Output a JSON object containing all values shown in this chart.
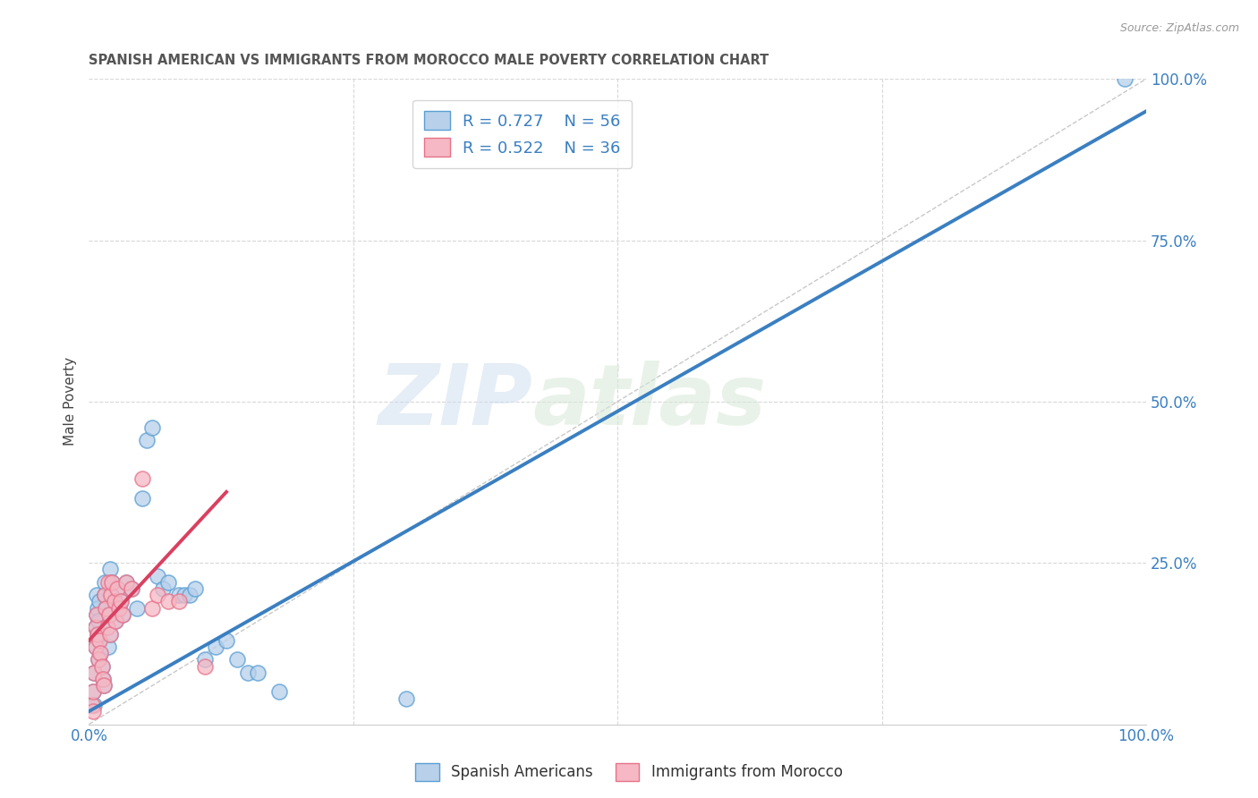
{
  "title": "SPANISH AMERICAN VS IMMIGRANTS FROM MOROCCO MALE POVERTY CORRELATION CHART",
  "source": "Source: ZipAtlas.com",
  "ylabel": "Male Poverty",
  "watermark": "ZIPatlas",
  "xlim": [
    0,
    1
  ],
  "ylim": [
    0,
    1
  ],
  "xticks": [
    0,
    0.25,
    0.5,
    0.75,
    1.0
  ],
  "yticks": [
    0,
    0.25,
    0.5,
    0.75,
    1.0
  ],
  "xticklabels": [
    "0.0%",
    "",
    "",
    "",
    "100.0%"
  ],
  "right_yticklabels": [
    "25.0%",
    "50.0%",
    "75.0%",
    "100.0%"
  ],
  "blue_R": "0.727",
  "blue_N": "56",
  "pink_R": "0.522",
  "pink_N": "36",
  "blue_fill_color": "#b8d0ea",
  "pink_fill_color": "#f5b8c4",
  "blue_edge_color": "#5a9fd4",
  "pink_edge_color": "#e8728a",
  "blue_line_color": "#3a7fc1",
  "pink_line_color": "#d94060",
  "diag_line_color": "#c8c8c8",
  "legend_text_color": "#3a7fc1",
  "title_color": "#555555",
  "right_axis_color": "#3a7fc1",
  "bottom_axis_color": "#3a7fc1",
  "grid_color": "#d8d8d8",
  "blue_scatter_x": [
    0.003,
    0.004,
    0.005,
    0.006,
    0.006,
    0.007,
    0.007,
    0.008,
    0.008,
    0.009,
    0.009,
    0.01,
    0.01,
    0.011,
    0.012,
    0.013,
    0.014,
    0.015,
    0.015,
    0.016,
    0.017,
    0.018,
    0.019,
    0.02,
    0.02,
    0.021,
    0.022,
    0.024,
    0.025,
    0.027,
    0.028,
    0.03,
    0.032,
    0.035,
    0.04,
    0.045,
    0.05,
    0.055,
    0.06,
    0.065,
    0.07,
    0.075,
    0.085,
    0.09,
    0.095,
    0.1,
    0.11,
    0.12,
    0.13,
    0.14,
    0.15,
    0.16,
    0.18,
    0.3,
    0.98,
    0.005
  ],
  "blue_scatter_y": [
    0.03,
    0.05,
    0.08,
    0.12,
    0.15,
    0.17,
    0.2,
    0.14,
    0.18,
    0.1,
    0.16,
    0.13,
    0.19,
    0.11,
    0.09,
    0.07,
    0.06,
    0.2,
    0.22,
    0.18,
    0.15,
    0.12,
    0.17,
    0.14,
    0.24,
    0.2,
    0.22,
    0.19,
    0.16,
    0.21,
    0.18,
    0.19,
    0.17,
    0.22,
    0.21,
    0.18,
    0.35,
    0.44,
    0.46,
    0.23,
    0.21,
    0.22,
    0.2,
    0.2,
    0.2,
    0.21,
    0.1,
    0.12,
    0.13,
    0.1,
    0.08,
    0.08,
    0.05,
    0.04,
    1.0,
    0.03
  ],
  "pink_scatter_x": [
    0.003,
    0.004,
    0.005,
    0.006,
    0.006,
    0.007,
    0.008,
    0.009,
    0.01,
    0.011,
    0.012,
    0.013,
    0.014,
    0.015,
    0.016,
    0.017,
    0.018,
    0.019,
    0.02,
    0.021,
    0.022,
    0.024,
    0.025,
    0.027,
    0.028,
    0.03,
    0.032,
    0.035,
    0.04,
    0.05,
    0.06,
    0.065,
    0.075,
    0.085,
    0.11,
    0.004
  ],
  "pink_scatter_y": [
    0.03,
    0.05,
    0.08,
    0.12,
    0.15,
    0.17,
    0.14,
    0.1,
    0.13,
    0.11,
    0.09,
    0.07,
    0.06,
    0.2,
    0.18,
    0.15,
    0.22,
    0.17,
    0.14,
    0.2,
    0.22,
    0.19,
    0.16,
    0.21,
    0.18,
    0.19,
    0.17,
    0.22,
    0.21,
    0.38,
    0.18,
    0.2,
    0.19,
    0.19,
    0.09,
    0.02
  ],
  "blue_line_x": [
    0.0,
    1.0
  ],
  "blue_line_y": [
    0.02,
    0.95
  ],
  "pink_line_x": [
    0.0,
    0.13
  ],
  "pink_line_y": [
    0.13,
    0.36
  ],
  "diag_line_x": [
    0.0,
    1.0
  ],
  "diag_line_y": [
    0.0,
    1.0
  ],
  "legend_label_blue": "Spanish Americans",
  "legend_label_pink": "Immigrants from Morocco"
}
